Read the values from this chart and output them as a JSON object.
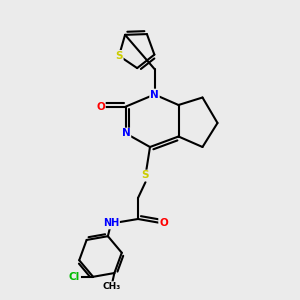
{
  "bg_color": "#ebebeb",
  "bond_color": "#000000",
  "atom_colors": {
    "S": "#cccc00",
    "N": "#0000ff",
    "O": "#ff0000",
    "Cl": "#00bb00",
    "C": "#000000",
    "H": "#000000"
  }
}
